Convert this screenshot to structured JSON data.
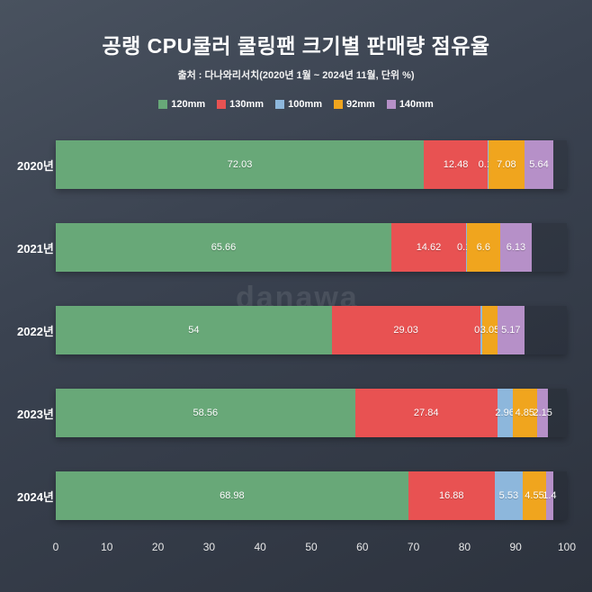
{
  "title": "공랭 CPU쿨러 쿨링팬 크기별 판매량 점유율",
  "subtitle": "출처 : 다나와리서치(2020년 1월 ~ 2024년 11월, 단위 %)",
  "watermark": "danawa",
  "chart_data": {
    "type": "bar",
    "orientation": "horizontal",
    "stacked": true,
    "title": "공랭 CPU쿨러 쿨링팬 크기별 판매량 점유율",
    "subtitle": "출처 : 다나와리서치(2020년 1월 ~ 2024년 11월, 단위 %)",
    "categories": [
      "2020년",
      "2021년",
      "2022년",
      "2023년",
      "2024년"
    ],
    "series": [
      {
        "name": "120mm",
        "color": "#68a878",
        "values": [
          72.03,
          65.66,
          54,
          58.56,
          68.98
        ],
        "labels": [
          "72.03",
          "65.66",
          "54",
          "58.56",
          "68.98"
        ]
      },
      {
        "name": "130mm",
        "color": "#e85252",
        "values": [
          12.48,
          14.62,
          29.03,
          27.84,
          16.88
        ],
        "labels": [
          "12.48",
          "14.62",
          "29.03",
          "27.84",
          "16.88"
        ]
      },
      {
        "name": "100mm",
        "color": "#8db7dc",
        "values": [
          0.14,
          0.11,
          0.4,
          2.96,
          5.53
        ],
        "labels": [
          "0.14",
          "0.11",
          "0.4",
          "2.96",
          "5.53"
        ]
      },
      {
        "name": "92mm",
        "color": "#f0a51e",
        "values": [
          7.08,
          6.6,
          3.05,
          4.85,
          4.55
        ],
        "labels": [
          "7.08",
          "6.6",
          "3.05",
          "4.85",
          "4.55"
        ]
      },
      {
        "name": "140mm",
        "color": "#b690c8",
        "values": [
          5.64,
          6.13,
          5.17,
          2.15,
          1.4
        ],
        "labels": [
          "5.64",
          "6.13",
          "5.17",
          "2.15",
          "1.4"
        ]
      }
    ],
    "xlabel": "",
    "ylabel": "",
    "xlim": [
      0,
      100
    ],
    "x_ticks": [
      0,
      10,
      20,
      30,
      40,
      50,
      60,
      70,
      80,
      90,
      100
    ],
    "grid": false,
    "legend_position": "top"
  }
}
